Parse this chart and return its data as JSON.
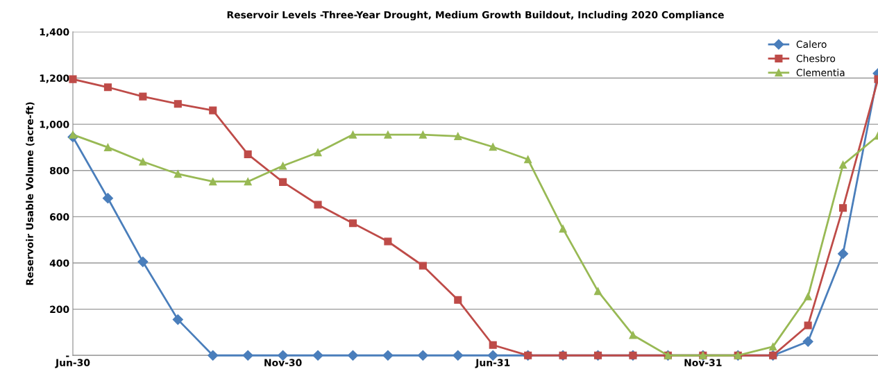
{
  "chart_data": {
    "type": "line",
    "title": "Reservoir Levels -Three-Year Drought, Medium Growth Buildout, Including 2020 Compliance",
    "ylabel": "Reservoir Usable Volume (acre-ft)",
    "categories": [
      "Jun-30",
      null,
      null,
      null,
      null,
      null,
      "Nov-30",
      null,
      null,
      null,
      null,
      null,
      "Jun-31",
      null,
      null,
      null,
      null,
      null,
      "Nov-31",
      null,
      null,
      null,
      null,
      null
    ],
    "series": [
      {
        "name": "Calero",
        "color": "#4a7ebb",
        "marker": "diamond",
        "values": [
          945,
          680,
          405,
          155,
          0,
          0,
          0,
          0,
          0,
          0,
          0,
          0,
          0,
          0,
          0,
          0,
          0,
          0,
          0,
          0,
          0,
          60,
          440,
          1220
        ]
      },
      {
        "name": "Chesbro",
        "color": "#be4b48",
        "marker": "square",
        "values": [
          1195,
          1160,
          1120,
          1088,
          1060,
          870,
          750,
          652,
          572,
          493,
          388,
          240,
          45,
          0,
          0,
          0,
          0,
          0,
          0,
          0,
          0,
          130,
          638,
          1195
        ]
      },
      {
        "name": "Clementia",
        "color": "#98b954",
        "marker": "triangle",
        "values": [
          955,
          900,
          838,
          785,
          752,
          752,
          820,
          878,
          955,
          955,
          955,
          948,
          902,
          848,
          548,
          278,
          88,
          0,
          0,
          0,
          38,
          255,
          825,
          950
        ]
      }
    ],
    "ylim": [
      0,
      1400
    ],
    "yticks": [
      {
        "value": 0,
        "label": "-"
      },
      {
        "value": 200,
        "label": "200"
      },
      {
        "value": 400,
        "label": "400"
      },
      {
        "value": 600,
        "label": "600"
      },
      {
        "value": 800,
        "label": "800"
      },
      {
        "value": 1000,
        "label": "1,000"
      },
      {
        "value": 1200,
        "label": "1,200"
      },
      {
        "value": 1400,
        "label": "1,400"
      }
    ],
    "grid": "y",
    "legend": "top right"
  }
}
